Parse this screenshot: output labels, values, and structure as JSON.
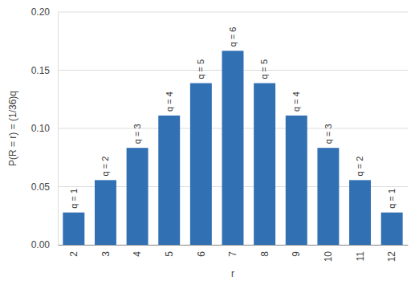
{
  "chart_data": {
    "type": "bar",
    "x_label": "r",
    "y_label": "P(R = r) = (1/36)q",
    "categories": [
      "2",
      "3",
      "4",
      "5",
      "6",
      "7",
      "8",
      "9",
      "10",
      "11",
      "12"
    ],
    "values": [
      0.0278,
      0.0556,
      0.0833,
      0.1111,
      0.1389,
      0.1667,
      0.1389,
      0.1111,
      0.0833,
      0.0556,
      0.0278
    ],
    "annotations": [
      "q = 1",
      "q = 2",
      "q = 3",
      "q = 4",
      "q = 5",
      "q = 6",
      "q = 5",
      "q = 4",
      "q = 3",
      "q = 2",
      "q = 1"
    ],
    "color": "#3070b3",
    "ylim": [
      0,
      0.2
    ],
    "yticks": [
      {
        "value": 0,
        "label": "0.00"
      },
      {
        "value": 0.05,
        "label": "0.05"
      },
      {
        "value": 0.1,
        "label": "0.10"
      },
      {
        "value": 0.15,
        "label": "0.15"
      },
      {
        "value": 0.2,
        "label": "0.20"
      }
    ],
    "grid": true
  }
}
